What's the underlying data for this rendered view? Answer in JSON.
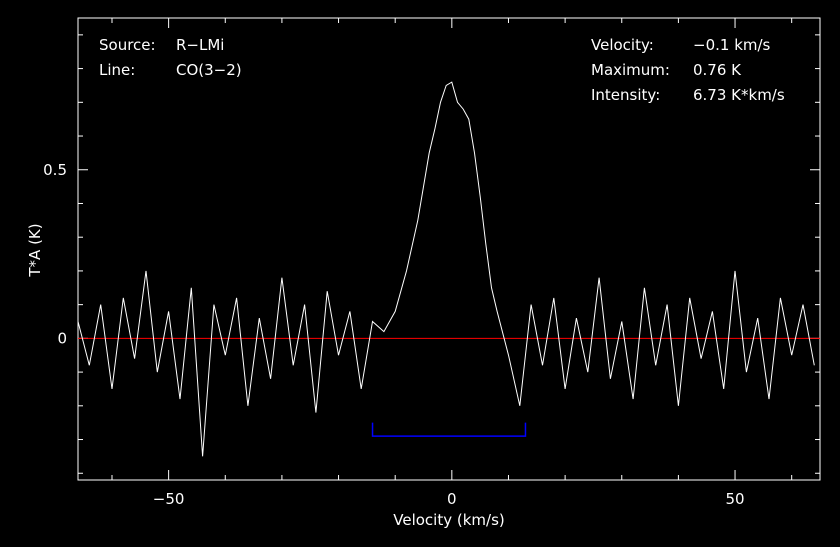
{
  "chart_data": {
    "type": "line",
    "xlabel": "Velocity (km/s)",
    "ylabel": "T*A (K)",
    "xlim": [
      -66,
      65
    ],
    "ylim": [
      -0.42,
      0.95
    ],
    "xticks": [
      -50,
      0,
      50
    ],
    "yticks": [
      0,
      0.5
    ],
    "xtick_labels": [
      "−50",
      "0",
      "50"
    ],
    "ytick_labels": [
      "0",
      "0.5"
    ],
    "grid": false,
    "info": {
      "source_label": "Source:",
      "source_value": "R−LMi",
      "line_label": "Line:",
      "line_value": "CO(3−2)",
      "velocity_label": "Velocity:",
      "velocity_value": "−0.1 km/s",
      "maximum_label": "Maximum:",
      "maximum_value": "0.76 K",
      "intensity_label": "Intensity:",
      "intensity_value": "6.73 K*km/s"
    },
    "baseline": {
      "y": 0,
      "color": "#ff0000"
    },
    "integration_window": {
      "x": [
        -14,
        13
      ],
      "y": -0.29,
      "tick_top": -0.25,
      "color": "#0000ff"
    },
    "series": [
      {
        "color": "#ffffff",
        "x": [
          -66,
          -64,
          -62,
          -60,
          -58,
          -56,
          -54,
          -52,
          -50,
          -48,
          -46,
          -44,
          -42,
          -40,
          -38,
          -36,
          -34,
          -32,
          -30,
          -28,
          -26,
          -24,
          -22,
          -20,
          -18,
          -16,
          -14,
          -12,
          -10,
          -8,
          -6,
          -4,
          -3,
          -2,
          -1,
          0,
          1,
          2,
          3,
          4,
          5,
          6,
          7,
          8,
          10,
          12,
          14,
          16,
          18,
          20,
          22,
          24,
          26,
          28,
          30,
          32,
          34,
          36,
          38,
          40,
          42,
          44,
          46,
          48,
          50,
          52,
          54,
          56,
          58,
          60,
          62,
          64
        ],
        "y": [
          0.05,
          -0.08,
          0.1,
          -0.15,
          0.12,
          -0.06,
          0.2,
          -0.1,
          0.08,
          -0.18,
          0.15,
          -0.35,
          0.1,
          -0.05,
          0.12,
          -0.2,
          0.06,
          -0.12,
          0.18,
          -0.08,
          0.1,
          -0.22,
          0.14,
          -0.05,
          0.08,
          -0.15,
          0.05,
          0.02,
          0.08,
          0.2,
          0.35,
          0.55,
          0.62,
          0.7,
          0.75,
          0.76,
          0.7,
          0.68,
          0.65,
          0.55,
          0.42,
          0.28,
          0.15,
          0.08,
          -0.05,
          -0.2,
          0.1,
          -0.08,
          0.12,
          -0.15,
          0.06,
          -0.1,
          0.18,
          -0.12,
          0.05,
          -0.18,
          0.15,
          -0.08,
          0.1,
          -0.2,
          0.12,
          -0.06,
          0.08,
          -0.15,
          0.2,
          -0.1,
          0.06,
          -0.18,
          0.12,
          -0.05,
          0.1,
          -0.08
        ]
      }
    ]
  }
}
